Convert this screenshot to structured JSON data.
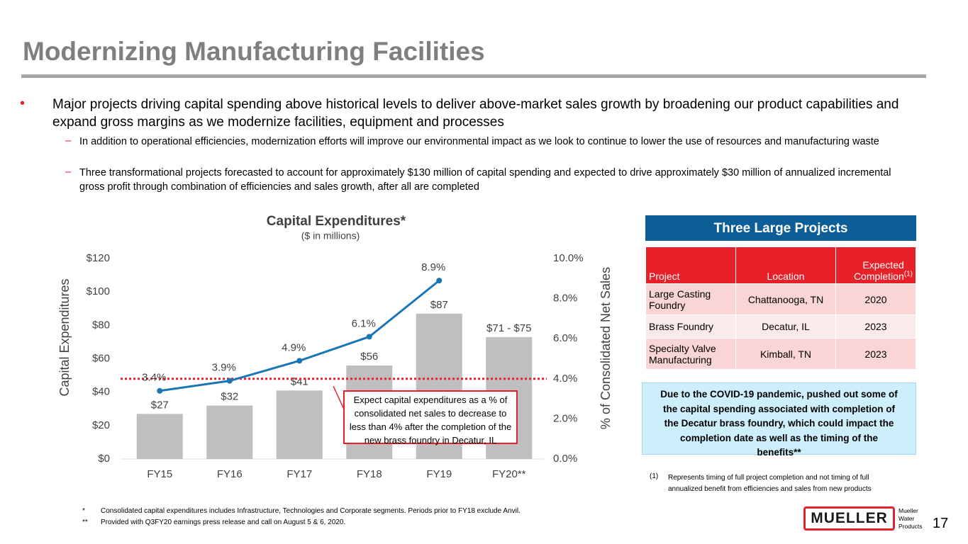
{
  "title": "Modernizing Manufacturing Facilities",
  "bullets": {
    "main": "Major projects driving capital spending above historical levels to deliver above-market sales growth by broadening our product capabilities and expand gross margins as we modernize facilities, equipment and processes",
    "subs": [
      "In addition to operational efficiencies, modernization efforts will improve our environmental impact as we look to continue to lower the use of resources and manufacturing waste",
      "Three transformational projects forecasted to account for approximately $130 million of capital spending and expected to drive approximately $30 million of annualized incremental gross profit through combination of efficiencies and sales growth, after all are completed"
    ]
  },
  "chart_data": {
    "type": "bar",
    "title": "Capital Expenditures*",
    "subtitle": "($ in millions)",
    "categories": [
      "FY15",
      "FY16",
      "FY17",
      "FY18",
      "FY19",
      "FY20**"
    ],
    "series": [
      {
        "name": "Capital Expenditures",
        "type": "bar",
        "color": "#bfbfbf",
        "values": [
          27,
          32,
          41,
          56,
          87,
          73
        ],
        "value_labels": [
          "$27",
          "$32",
          "$41",
          "$56",
          "$87",
          "$71 - $75"
        ]
      },
      {
        "name": "% of Consolidated Net Sales",
        "type": "line",
        "axis": "y2",
        "color": "#1a75b5",
        "values": [
          3.4,
          3.9,
          4.9,
          6.1,
          8.9,
          null
        ],
        "value_labels": [
          "3.4%",
          "3.9%",
          "4.9%",
          "6.1%",
          "8.9%",
          null
        ]
      }
    ],
    "ylabel": "Capital Expenditures",
    "y2label": "% of Consolidated Net Sales",
    "ylim": [
      0,
      120
    ],
    "yticks": [
      {
        "value": 0,
        "label": "$0"
      },
      {
        "value": 20,
        "label": "$20"
      },
      {
        "value": 40,
        "label": "$40"
      },
      {
        "value": 60,
        "label": "$60"
      },
      {
        "value": 80,
        "label": "$80"
      },
      {
        "value": 100,
        "label": "$100"
      },
      {
        "value": 120,
        "label": "$120"
      }
    ],
    "y2lim": [
      0,
      10
    ],
    "y2ticks": [
      {
        "value": 0,
        "label": "0.0%"
      },
      {
        "value": 2,
        "label": "2.0%"
      },
      {
        "value": 4,
        "label": "4.0%"
      },
      {
        "value": 6,
        "label": "6.0%"
      },
      {
        "value": 8,
        "label": "8.0%"
      },
      {
        "value": 10,
        "label": "10.0%"
      }
    ],
    "reference_line": {
      "value": 4,
      "axis": "y2",
      "color": "#e8202a"
    },
    "annotation": "Expect capital expenditures as a % of consolidated net sales to decrease to less than 4% after the completion of the new brass foundry in Decatur, IL"
  },
  "table": {
    "title": "Three Large Projects",
    "header": [
      "Project",
      "Location",
      "Expected Completion"
    ],
    "header_note": "(1)",
    "rows": [
      [
        "Large Casting Foundry",
        "Chattanooga, TN",
        "2020"
      ],
      [
        "Brass Foundry",
        "Decatur, IL",
        "2023"
      ],
      [
        "Specialty Valve Manufacturing",
        "Kimball, TN",
        "2023"
      ]
    ]
  },
  "covid_note": "Due to the COVID-19 pandemic, pushed out some of the capital spending associated with completion of the Decatur brass foundry, which could impact the completion date as well as the timing of the benefits**",
  "table_footnote": {
    "mark": "(1)",
    "text": "Represents timing of full project completion and not timing of full annualized benefit from efficiencies and sales from new products"
  },
  "footnotes": [
    {
      "mark": "*",
      "text": "Consolidated capital expenditures includes Infrastructure, Technologies and Corporate segments.  Periods prior to FY18 exclude Anvil."
    },
    {
      "mark": "**",
      "text": "Provided with Q3FY20 earnings press release and call on August 5 & 6, 2020."
    }
  ],
  "logo": {
    "name": "MUELLER",
    "tagline": "Mueller Water Products"
  },
  "page_number": "17"
}
